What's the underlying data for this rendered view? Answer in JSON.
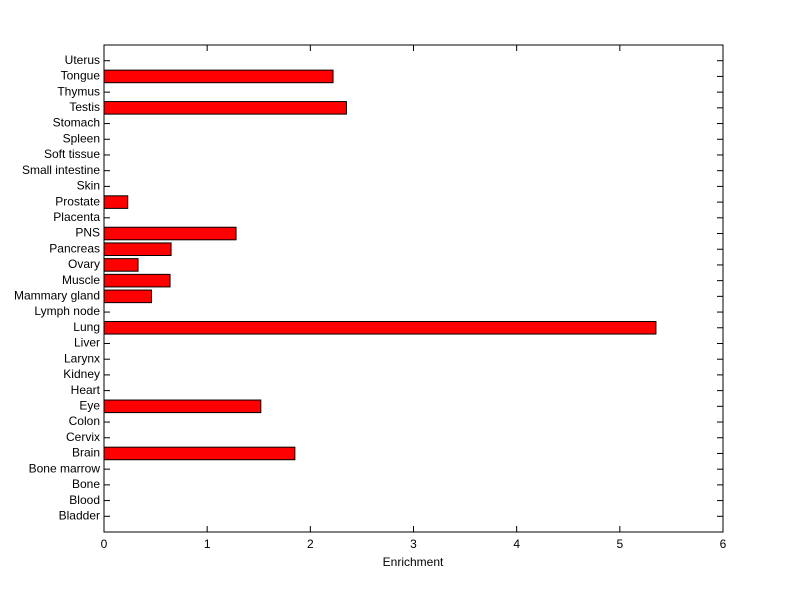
{
  "chart_data": {
    "type": "barh",
    "xlabel": "Enrichment",
    "categories": [
      "Bladder",
      "Blood",
      "Bone",
      "Bone marrow",
      "Brain",
      "Cervix",
      "Colon",
      "Eye",
      "Heart",
      "Kidney",
      "Larynx",
      "Liver",
      "Lung",
      "Lymph node",
      "Mammary gland",
      "Muscle",
      "Ovary",
      "Pancreas",
      "PNS",
      "Placenta",
      "Prostate",
      "Skin",
      "Small intestine",
      "Soft tissue",
      "Spleen",
      "Stomach",
      "Testis",
      "Thymus",
      "Tongue",
      "Uterus"
    ],
    "values": [
      0,
      0,
      0,
      0,
      1.85,
      0,
      0,
      1.52,
      0,
      0,
      0,
      0,
      5.35,
      0,
      0.46,
      0.64,
      0.33,
      0.65,
      1.28,
      0,
      0.23,
      0,
      0,
      0,
      0,
      0,
      2.35,
      0,
      2.22,
      0
    ],
    "color": "#ff0000",
    "xlim": [
      0,
      6
    ],
    "xticks": [
      0,
      1,
      2,
      3,
      4,
      5,
      6
    ]
  }
}
